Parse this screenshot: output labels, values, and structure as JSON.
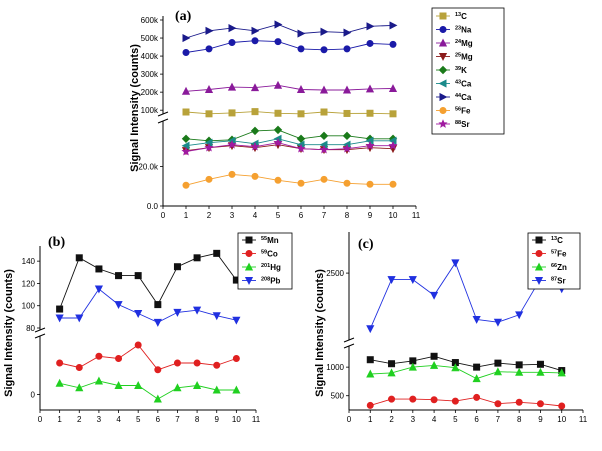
{
  "chart_data": [
    {
      "panel": "(a)",
      "type": "line",
      "ylabel": "Signal Intensity (counts)",
      "x": [
        1,
        2,
        3,
        4,
        5,
        6,
        7,
        8,
        9,
        10
      ],
      "xticks": [
        "0",
        "1",
        "2",
        "3",
        "4",
        "5",
        "6",
        "7",
        "8",
        "9",
        "10",
        "11"
      ],
      "broken_axis": true,
      "upper_yticks": [
        "100k",
        "200k",
        "300k",
        "400k",
        "500k",
        "600k"
      ],
      "lower_yticks": [
        "0.0",
        "20.0k"
      ],
      "series": [
        {
          "name": "13C",
          "mass": "13",
          "element": "C",
          "color": "#b8a23a",
          "marker": "square",
          "segment": "upper",
          "values": [
            90000,
            80000,
            85000,
            92000,
            83000,
            80000,
            90000,
            82000,
            83000,
            80000
          ]
        },
        {
          "name": "23Na",
          "mass": "23",
          "element": "Na",
          "color": "#1a1aa8",
          "marker": "circle",
          "segment": "upper",
          "values": [
            420000,
            440000,
            475000,
            485000,
            480000,
            440000,
            435000,
            440000,
            470000,
            465000
          ]
        },
        {
          "name": "24Mg",
          "mass": "24",
          "element": "Mg",
          "color": "#8a1a9a",
          "marker": "triangle-up",
          "segment": "upper",
          "values": [
            205000,
            215000,
            228000,
            225000,
            238000,
            215000,
            212000,
            212000,
            218000,
            220000
          ]
        },
        {
          "name": "25Mg",
          "mass": "25",
          "element": "Mg",
          "color": "#8b1a1a",
          "marker": "triangle-down",
          "segment": "lower",
          "values": [
            28000,
            29500,
            30500,
            29500,
            31000,
            29000,
            28500,
            28500,
            29500,
            29000
          ]
        },
        {
          "name": "39K",
          "mass": "39",
          "element": "K",
          "color": "#1a7a1a",
          "marker": "diamond",
          "segment": "lower",
          "values": [
            34000,
            33000,
            33500,
            38000,
            38500,
            34000,
            35500,
            35500,
            34000,
            34000
          ]
        },
        {
          "name": "43Ca",
          "mass": "43",
          "element": "Ca",
          "color": "#1a8a8a",
          "marker": "triangle-left",
          "segment": "lower",
          "values": [
            30500,
            32000,
            33000,
            31500,
            34000,
            31000,
            31000,
            31000,
            33000,
            33000
          ]
        },
        {
          "name": "44Ca",
          "mass": "44",
          "element": "Ca",
          "color": "#1a1a8a",
          "marker": "triangle-right",
          "segment": "upper",
          "values": [
            500000,
            540000,
            555000,
            540000,
            575000,
            525000,
            535000,
            530000,
            565000,
            570000
          ]
        },
        {
          "name": "56Fe",
          "mass": "56",
          "element": "Fe",
          "color": "#f5a030",
          "marker": "circle",
          "segment": "lower",
          "values": [
            10500,
            13500,
            16000,
            15000,
            13000,
            11500,
            13500,
            11500,
            11000,
            11000
          ]
        },
        {
          "name": "88Sr",
          "mass": "88",
          "element": "Sr",
          "color": "#a01aa0",
          "marker": "star",
          "segment": "lower",
          "values": [
            27500,
            29500,
            31000,
            30000,
            32000,
            29000,
            28500,
            29000,
            30500,
            30500
          ]
        }
      ]
    },
    {
      "panel": "(b)",
      "type": "line",
      "ylabel": "Signal Intensity (counts)",
      "x": [
        1,
        2,
        3,
        4,
        5,
        6,
        7,
        8,
        9,
        10
      ],
      "xticks": [
        "0",
        "1",
        "2",
        "3",
        "4",
        "5",
        "6",
        "7",
        "8",
        "9",
        "10",
        "11"
      ],
      "broken_axis": true,
      "upper_yticks": [
        "80",
        "100",
        "120",
        "140"
      ],
      "lower_yticks": [
        "0"
      ],
      "series": [
        {
          "name": "55Mn",
          "mass": "55",
          "element": "Mn",
          "color": "#111111",
          "marker": "square",
          "segment": "upper",
          "values": [
            97,
            143,
            133,
            127,
            127,
            101,
            135,
            143,
            147,
            123
          ]
        },
        {
          "name": "59Co",
          "mass": "59",
          "element": "Co",
          "color": "#e02020",
          "marker": "circle",
          "segment": "lower",
          "values": [
            14,
            12,
            17,
            16,
            22,
            11,
            14,
            14,
            13,
            16
          ]
        },
        {
          "name": "201Hg",
          "mass": "201",
          "element": "Hg",
          "color": "#20d020",
          "marker": "triangle-up",
          "segment": "lower",
          "values": [
            5,
            3,
            6,
            4,
            4,
            -2,
            3,
            4,
            2,
            2
          ]
        },
        {
          "name": "208Pb",
          "mass": "208",
          "element": "Pb",
          "color": "#2030e0",
          "marker": "triangle-down",
          "segment": "upper",
          "values": [
            89,
            89,
            115,
            101,
            93,
            85,
            94,
            96,
            91,
            87
          ]
        }
      ]
    },
    {
      "panel": "(c)",
      "type": "line",
      "ylabel": "Signal Intensity (counts)",
      "x": [
        1,
        2,
        3,
        4,
        5,
        6,
        7,
        8,
        9,
        10
      ],
      "xticks": [
        "0",
        "1",
        "2",
        "3",
        "4",
        "5",
        "6",
        "7",
        "8",
        "9",
        "10",
        "11"
      ],
      "broken_axis": true,
      "upper_yticks": [
        "2500"
      ],
      "lower_yticks": [
        "500",
        "1000"
      ],
      "series": [
        {
          "name": "13C",
          "mass": "13",
          "element": "C",
          "color": "#111111",
          "marker": "square",
          "segment": "lower",
          "values": [
            1130,
            1060,
            1110,
            1190,
            1080,
            1000,
            1070,
            1040,
            1050,
            940
          ]
        },
        {
          "name": "57Fe",
          "mass": "57",
          "element": "Fe",
          "color": "#e02020",
          "marker": "circle",
          "segment": "lower",
          "values": [
            330,
            440,
            440,
            430,
            405,
            470,
            360,
            385,
            360,
            320
          ]
        },
        {
          "name": "66Zn",
          "mass": "66",
          "element": "Zn",
          "color": "#20d020",
          "marker": "triangle-up",
          "segment": "lower",
          "values": [
            880,
            900,
            1000,
            1030,
            990,
            800,
            920,
            910,
            910,
            900
          ]
        },
        {
          "name": "87Sr",
          "mass": "87",
          "element": "Sr",
          "color": "#2030e0",
          "marker": "triangle-down",
          "segment": "upper",
          "values": [
            1900,
            2430,
            2430,
            2260,
            2610,
            2000,
            1970,
            2050,
            2440,
            2330
          ]
        }
      ]
    }
  ]
}
